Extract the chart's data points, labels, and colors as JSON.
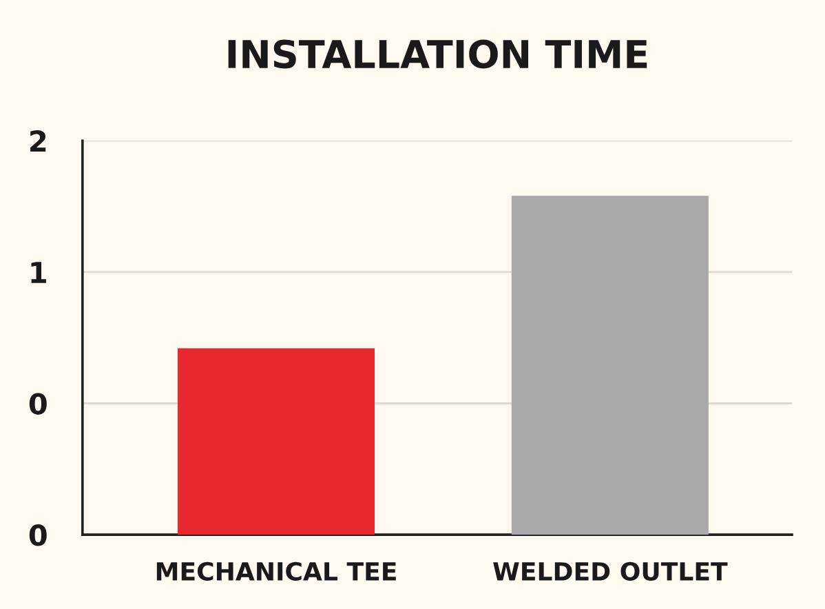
{
  "chart_data": {
    "type": "bar",
    "title": "INSTALLATION TIME",
    "categories": [
      "MECHANICAL TEE",
      "WELDED OUTLET"
    ],
    "values": [
      0.71,
      1.29
    ],
    "colors": [
      "#e8282f",
      "#a9a9a9"
    ],
    "ylim": [
      0,
      1.5
    ],
    "yticks": [
      {
        "value": 0,
        "label": "0"
      },
      {
        "value": 0.5,
        "label": "0"
      },
      {
        "value": 1,
        "label": "1"
      },
      {
        "value": 1.5,
        "label": "2"
      }
    ],
    "grid": "y"
  }
}
